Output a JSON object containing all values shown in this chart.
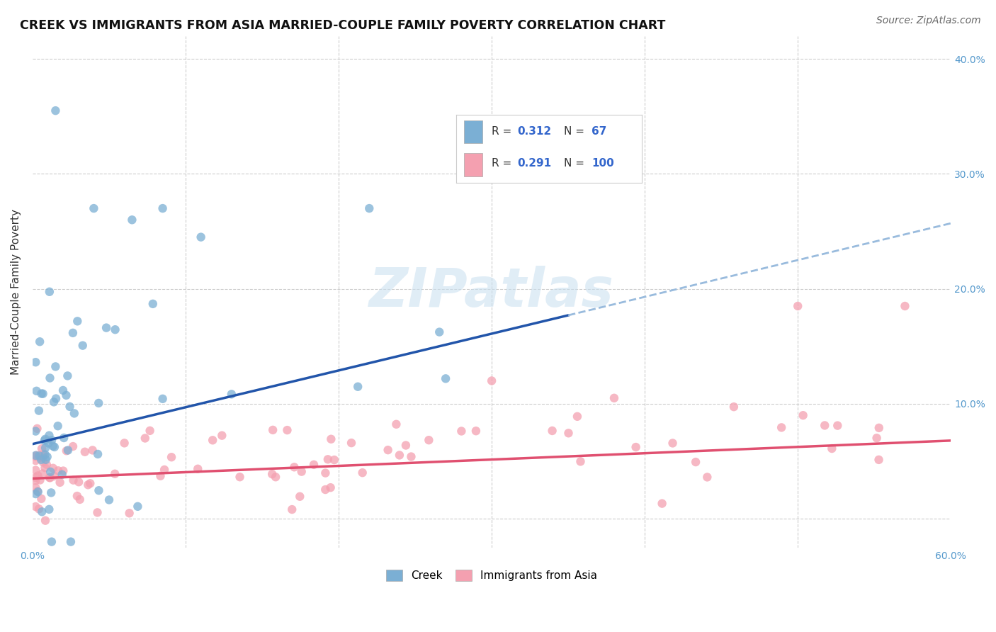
{
  "title": "CREEK VS IMMIGRANTS FROM ASIA MARRIED-COUPLE FAMILY POVERTY CORRELATION CHART",
  "source": "Source: ZipAtlas.com",
  "ylabel": "Married-Couple Family Poverty",
  "xlim": [
    0.0,
    0.6
  ],
  "ylim": [
    -0.025,
    0.42
  ],
  "creek_color": "#7BAFD4",
  "immigrants_color": "#F4A0B0",
  "creek_trend_color": "#2255AA",
  "immigrants_trend_color": "#E05070",
  "creek_R": 0.312,
  "creek_N": 67,
  "immigrants_R": 0.291,
  "immigrants_N": 100,
  "watermark": "ZIPatlas",
  "background_color": "#ffffff",
  "grid_color": "#cccccc",
  "right_tick_color": "#5599CC",
  "legend_text_color": "#333333",
  "legend_value_color": "#3366CC"
}
